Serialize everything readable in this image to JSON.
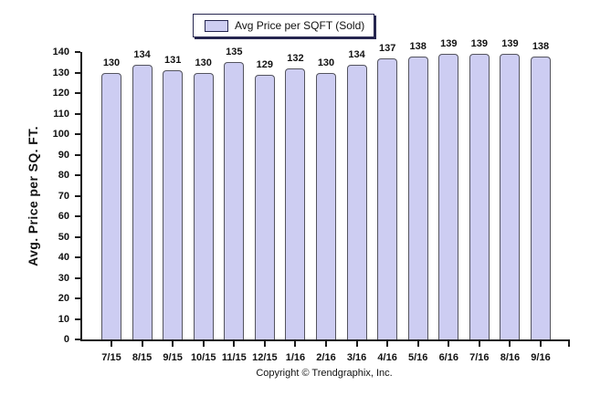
{
  "legend": {
    "label": "Avg Price per SQFT (Sold)"
  },
  "y_axis_title": "Avg. Price per SQ. FT.",
  "footer": "Copyright © Trendgraphix, Inc.",
  "colors": {
    "bar_fill": "#cdcdf2",
    "bar_border": "#54545e",
    "axis": "#1b1b1b",
    "legend_border": "#26264f",
    "background": "#ffffff"
  },
  "chart_data": {
    "type": "bar",
    "title": "",
    "categories": [
      "7/15",
      "8/15",
      "9/15",
      "10/15",
      "11/15",
      "12/15",
      "1/16",
      "2/16",
      "3/16",
      "4/16",
      "5/16",
      "6/16",
      "7/16",
      "8/16",
      "9/16"
    ],
    "values": [
      130,
      134,
      131,
      130,
      135,
      129,
      132,
      130,
      134,
      137,
      138,
      139,
      139,
      139,
      138
    ],
    "series_name": "Avg Price per SQFT (Sold)",
    "xlabel": "",
    "ylabel": "Avg. Price per SQ. FT.",
    "ylim": [
      0,
      140
    ],
    "ytick_step": 10,
    "grid": false,
    "legend_position": "top-center",
    "value_labels": true
  }
}
